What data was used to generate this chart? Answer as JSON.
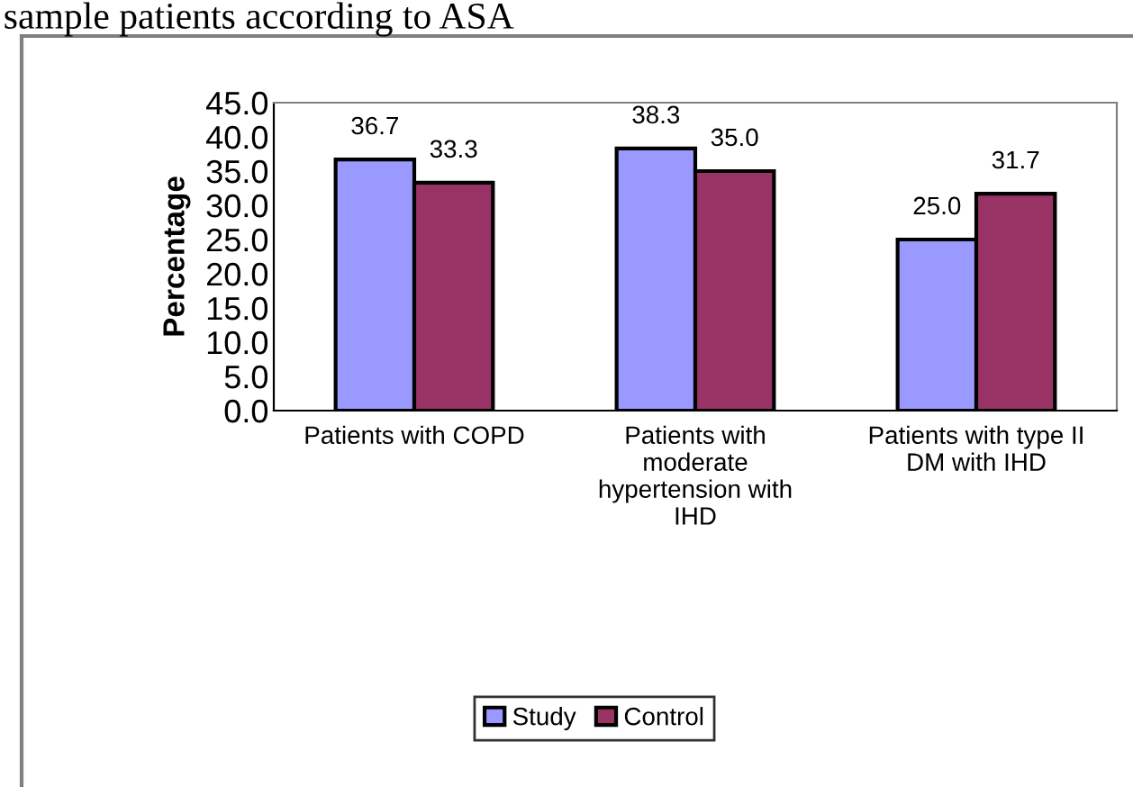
{
  "chart_data": {
    "type": "bar",
    "title": "sample patients according to ASA",
    "ylabel": "Percentage",
    "categories": [
      "Patients with COPD",
      "Patients with\nmoderate\nhypertension with\nIHD",
      "Patients with type II\nDM with IHD"
    ],
    "series": [
      {
        "name": "Study",
        "color": "#9999ff",
        "values": [
          36.7,
          38.3,
          25.0
        ],
        "value_labels": [
          "36.7",
          "38.3",
          "25.0"
        ]
      },
      {
        "name": "Control",
        "color": "#993366",
        "values": [
          33.3,
          35.0,
          31.7
        ],
        "value_labels": [
          "33.3",
          "35.0",
          "31.7"
        ]
      }
    ],
    "ylim": [
      0,
      45
    ],
    "yticks": [
      {
        "value": 0,
        "label": "0.0"
      },
      {
        "value": 5,
        "label": "5.0"
      },
      {
        "value": 10,
        "label": "10.0"
      },
      {
        "value": 15,
        "label": "15.0"
      },
      {
        "value": 20,
        "label": "20.0"
      },
      {
        "value": 25,
        "label": "25.0"
      },
      {
        "value": 30,
        "label": "30.0"
      },
      {
        "value": 35,
        "label": "35.0"
      },
      {
        "value": 40,
        "label": "40.0"
      },
      {
        "value": 45,
        "label": "45.0"
      }
    ],
    "grid": false,
    "legend": "bottom"
  }
}
